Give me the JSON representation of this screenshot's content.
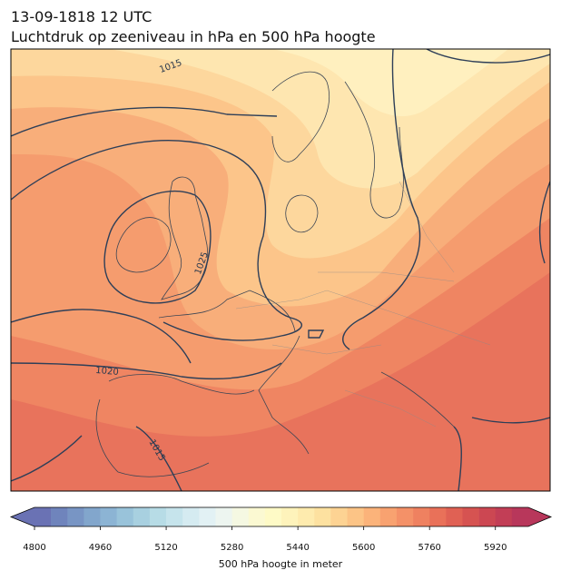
{
  "header": {
    "title": "13-09-1818 12 UTC",
    "subtitle": "Luchtdruk op zeeniveau in hPa en 500 hPa hoogte"
  },
  "map": {
    "contour_labels": [
      "1015",
      "1025",
      "1020",
      "1015"
    ]
  },
  "colorbar": {
    "label": "500 hPa hoogte in meter",
    "lim": [
      4800,
      6000
    ],
    "ticks": [
      4800,
      4960,
      5120,
      5280,
      5440,
      5600,
      5760,
      5920
    ],
    "colors": [
      "#6a72b4",
      "#6f84bc",
      "#7895c4",
      "#82a6cc",
      "#8cb4d4",
      "#99c3da",
      "#a8d0e0",
      "#b7dce6",
      "#c6e4ec",
      "#d5ebf1",
      "#e2f1f4",
      "#edf5f0",
      "#f5f8e2",
      "#fbf9d2",
      "#fefac6",
      "#fef3bb",
      "#feebae",
      "#fde1a0",
      "#fdd393",
      "#fcc486",
      "#fbb37a",
      "#f8a270",
      "#f49168",
      "#ef8160",
      "#e97159",
      "#e06154",
      "#d65351",
      "#cc4752",
      "#c23e56",
      "#b8375b"
    ]
  }
}
